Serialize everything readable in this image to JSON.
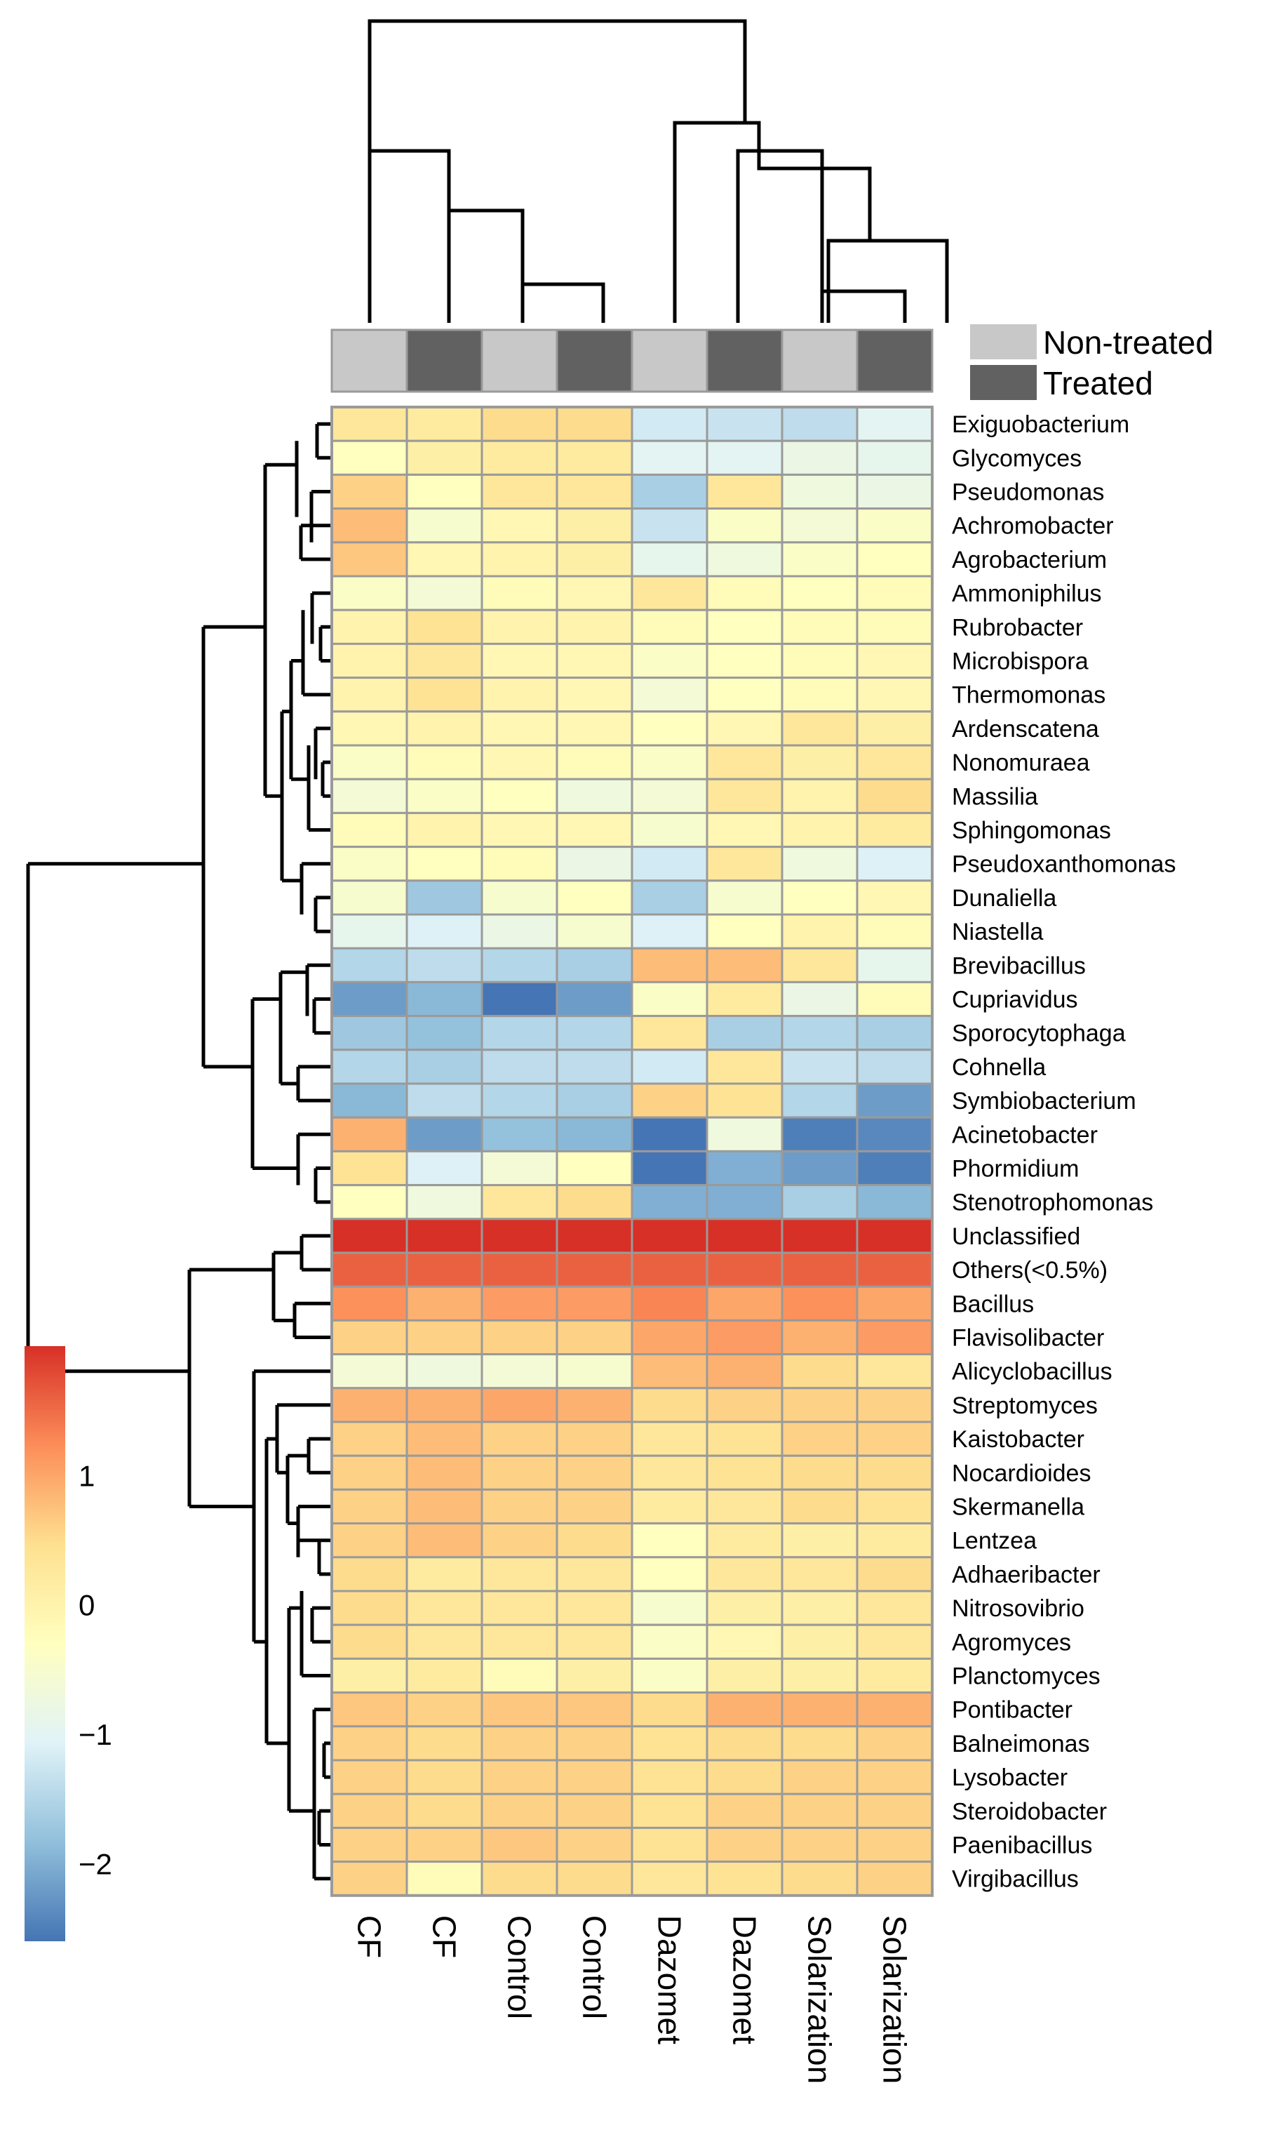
{
  "chart_data": {
    "type": "heatmap",
    "title": "",
    "columns": [
      "CF",
      "CF",
      "Control",
      "Control",
      "Dazomet",
      "Dazomet",
      "Solarization",
      "Solarization"
    ],
    "column_groups": [
      "Non-treated",
      "Treated",
      "Non-treated",
      "Treated",
      "Non-treated",
      "Treated",
      "Non-treated",
      "Treated"
    ],
    "rows": [
      "Exiguobacterium",
      "Glycomyces",
      "Pseudomonas",
      "Achromobacter",
      "Agrobacterium",
      "Ammoniphilus",
      "Rubrobacter",
      "Microbispora",
      "Thermomonas",
      "Ardenscatena",
      "Nonomuraea",
      "Massilia",
      "Sphingomonas",
      "Pseudoxanthomonas",
      "Dunaliella",
      "Niastella",
      "Brevibacillus",
      "Cupriavidus",
      "Sporocytophaga",
      "Cohnella",
      "Symbiobacterium",
      "Acinetobacter",
      "Phormidium",
      "Stenotrophomonas",
      "Unclassified",
      "Others(<0.5%)",
      "Bacillus",
      "Flavisolibacter",
      "Alicyclobacillus",
      "Streptomyces",
      "Kaistobacter",
      "Nocardioides",
      "Skermanella",
      "Lentzea",
      "Adhaeribacter",
      "Nitrosovibrio",
      "Agromyces",
      "Planctomyces",
      "Pontibacter",
      "Balneimonas",
      "Lysobacter",
      "Steroidobacter",
      "Paenibacillus",
      "Virgibacillus"
    ],
    "values": [
      [
        0.3,
        0.2,
        0.5,
        0.5,
        -1.2,
        -1.3,
        -1.4,
        -1.0
      ],
      [
        -0.3,
        0.1,
        0.2,
        0.2,
        -1.0,
        -1.0,
        -0.8,
        -0.9
      ],
      [
        0.6,
        -0.3,
        0.3,
        0.3,
        -1.6,
        0.3,
        -0.7,
        -0.8
      ],
      [
        0.8,
        -0.5,
        -0.1,
        0.1,
        -1.3,
        -0.4,
        -0.6,
        -0.4
      ],
      [
        0.7,
        -0.1,
        0.0,
        0.1,
        -0.9,
        -0.7,
        -0.4,
        -0.3
      ],
      [
        -0.4,
        -0.6,
        -0.2,
        -0.1,
        0.3,
        -0.2,
        -0.3,
        -0.2
      ],
      [
        0.0,
        0.4,
        0.0,
        0.0,
        -0.2,
        -0.3,
        -0.2,
        -0.2
      ],
      [
        0.0,
        0.3,
        -0.1,
        -0.1,
        -0.4,
        -0.3,
        -0.2,
        -0.1
      ],
      [
        0.0,
        0.4,
        0.0,
        -0.1,
        -0.6,
        -0.3,
        -0.2,
        -0.1
      ],
      [
        -0.1,
        0.0,
        -0.1,
        -0.1,
        -0.3,
        -0.1,
        0.3,
        0.1
      ],
      [
        -0.4,
        -0.2,
        -0.1,
        -0.2,
        -0.4,
        0.3,
        0.1,
        0.3
      ],
      [
        -0.6,
        -0.4,
        -0.3,
        -0.7,
        -0.6,
        0.3,
        0.0,
        0.5
      ],
      [
        -0.2,
        0.0,
        -0.1,
        -0.1,
        -0.5,
        -0.1,
        0.0,
        0.2
      ],
      [
        -0.4,
        -0.3,
        -0.2,
        -0.8,
        -1.2,
        0.3,
        -0.7,
        -1.1
      ],
      [
        -0.5,
        -1.7,
        -0.5,
        -0.3,
        -1.6,
        -0.5,
        -0.3,
        -0.1
      ],
      [
        -0.9,
        -1.1,
        -0.8,
        -0.5,
        -1.1,
        -0.3,
        0.0,
        -0.2
      ],
      [
        -1.5,
        -1.4,
        -1.5,
        -1.6,
        0.8,
        0.8,
        0.3,
        -0.9
      ],
      [
        -2.2,
        -1.9,
        -2.6,
        -2.2,
        -0.4,
        0.2,
        -0.8,
        -0.2
      ],
      [
        -1.7,
        -1.8,
        -1.5,
        -1.5,
        0.3,
        -1.6,
        -1.5,
        -1.6
      ],
      [
        -1.5,
        -1.6,
        -1.4,
        -1.4,
        -1.2,
        0.3,
        -1.3,
        -1.4
      ],
      [
        -1.9,
        -1.4,
        -1.5,
        -1.6,
        0.6,
        0.4,
        -1.5,
        -2.2
      ],
      [
        0.9,
        -2.2,
        -1.8,
        -1.9,
        -2.6,
        -0.7,
        -2.5,
        -2.4
      ],
      [
        0.4,
        -1.1,
        -0.6,
        -0.3,
        -2.6,
        -2.0,
        -2.2,
        -2.5
      ],
      [
        -0.3,
        -0.7,
        0.3,
        0.5,
        -2.0,
        -2.0,
        -1.6,
        -1.9
      ],
      [
        2.0,
        2.0,
        2.0,
        2.0,
        2.0,
        2.0,
        2.0,
        2.0
      ],
      [
        1.6,
        1.6,
        1.6,
        1.6,
        1.6,
        1.6,
        1.6,
        1.6
      ],
      [
        1.2,
        0.9,
        1.1,
        1.1,
        1.3,
        1.0,
        1.2,
        1.0
      ],
      [
        0.6,
        0.6,
        0.6,
        0.6,
        1.0,
        1.1,
        0.9,
        1.1
      ],
      [
        -0.6,
        -0.7,
        -0.6,
        -0.5,
        0.8,
        0.9,
        0.5,
        0.3
      ],
      [
        0.9,
        0.9,
        1.0,
        0.9,
        0.5,
        0.6,
        0.6,
        0.6
      ],
      [
        0.6,
        0.8,
        0.6,
        0.6,
        0.3,
        0.4,
        0.6,
        0.6
      ],
      [
        0.6,
        0.8,
        0.6,
        0.6,
        0.3,
        0.4,
        0.5,
        0.5
      ],
      [
        0.6,
        0.8,
        0.6,
        0.6,
        0.2,
        0.3,
        0.5,
        0.4
      ],
      [
        0.6,
        0.8,
        0.6,
        0.5,
        -0.3,
        0.2,
        0.1,
        0.2
      ],
      [
        0.5,
        0.2,
        0.3,
        0.3,
        -0.3,
        0.3,
        0.3,
        0.5
      ],
      [
        0.5,
        0.3,
        0.3,
        0.3,
        -0.5,
        0.1,
        0.1,
        0.3
      ],
      [
        0.5,
        0.3,
        0.3,
        0.3,
        -0.4,
        -0.1,
        0.1,
        0.3
      ],
      [
        0.1,
        0.2,
        -0.2,
        0.1,
        -0.4,
        0.1,
        0.1,
        0.2
      ],
      [
        0.7,
        0.6,
        0.7,
        0.7,
        0.5,
        0.9,
        0.9,
        0.9
      ],
      [
        0.6,
        0.5,
        0.6,
        0.6,
        0.4,
        0.5,
        0.5,
        0.6
      ],
      [
        0.6,
        0.5,
        0.6,
        0.6,
        0.4,
        0.5,
        0.6,
        0.6
      ],
      [
        0.6,
        0.5,
        0.6,
        0.6,
        0.4,
        0.6,
        0.6,
        0.6
      ],
      [
        0.6,
        0.6,
        0.7,
        0.6,
        0.4,
        0.6,
        0.6,
        0.6
      ],
      [
        0.6,
        -0.2,
        0.5,
        0.5,
        0.3,
        0.4,
        0.5,
        0.6
      ]
    ],
    "color_scale": {
      "ticks": [
        1,
        0,
        -1,
        -2
      ],
      "tick_labels": [
        "1",
        "0",
        "−1",
        "−2"
      ],
      "range": [
        -2.6,
        2.0
      ],
      "colors": [
        "#4575b4",
        "#91bfdb",
        "#e0f3f8",
        "#ffffbf",
        "#fee090",
        "#fc8d59",
        "#d73027"
      ]
    },
    "group_legend": [
      {
        "label": "Non-treated",
        "color": "#c8c8c8"
      },
      {
        "label": "Treated",
        "color": "#616161"
      }
    ],
    "column_dendrogram": true,
    "row_dendrogram": true
  }
}
